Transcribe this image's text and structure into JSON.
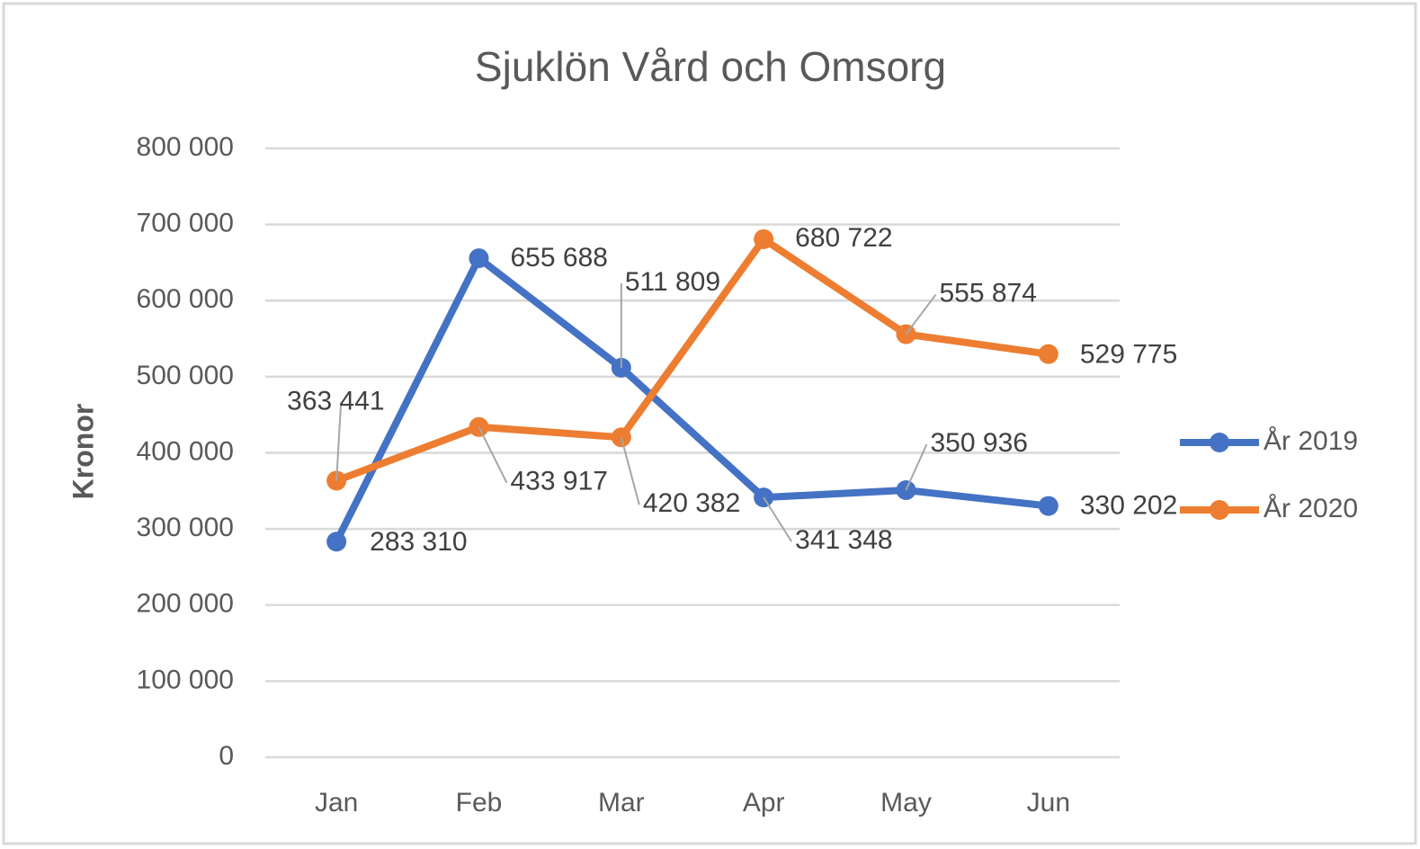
{
  "chart_data": {
    "type": "line",
    "title": "Sjuklön Vård och Omsorg",
    "y_label": "Kronor",
    "categories": [
      "Jan",
      "Feb",
      "Mar",
      "Apr",
      "May",
      "Jun"
    ],
    "series": [
      {
        "name": "År 2019",
        "color": "#4472c4",
        "values": [
          283310,
          655688,
          511809,
          341348,
          350936,
          330202
        ],
        "value_labels": [
          "283 310",
          "655 688",
          "511 809",
          "341 348",
          "350 936",
          "330 202"
        ]
      },
      {
        "name": "År 2020",
        "color": "#ed7d31",
        "values": [
          363441,
          433917,
          420382,
          680722,
          555874,
          529775
        ],
        "value_labels": [
          "363 441",
          "433 917",
          "420 382",
          "680 722",
          "555 874",
          "529 775"
        ]
      }
    ],
    "ylim": [
      0,
      800000
    ],
    "yticks": [
      {
        "value": 0,
        "label": "0"
      },
      {
        "value": 100000,
        "label": "100 000"
      },
      {
        "value": 200000,
        "label": "200 000"
      },
      {
        "value": 300000,
        "label": "300 000"
      },
      {
        "value": 400000,
        "label": "400 000"
      },
      {
        "value": 500000,
        "label": "500 000"
      },
      {
        "value": 600000,
        "label": "600 000"
      },
      {
        "value": 700000,
        "label": "700 000"
      },
      {
        "value": 800000,
        "label": "800 000"
      }
    ],
    "grid": true,
    "legend": "right"
  }
}
